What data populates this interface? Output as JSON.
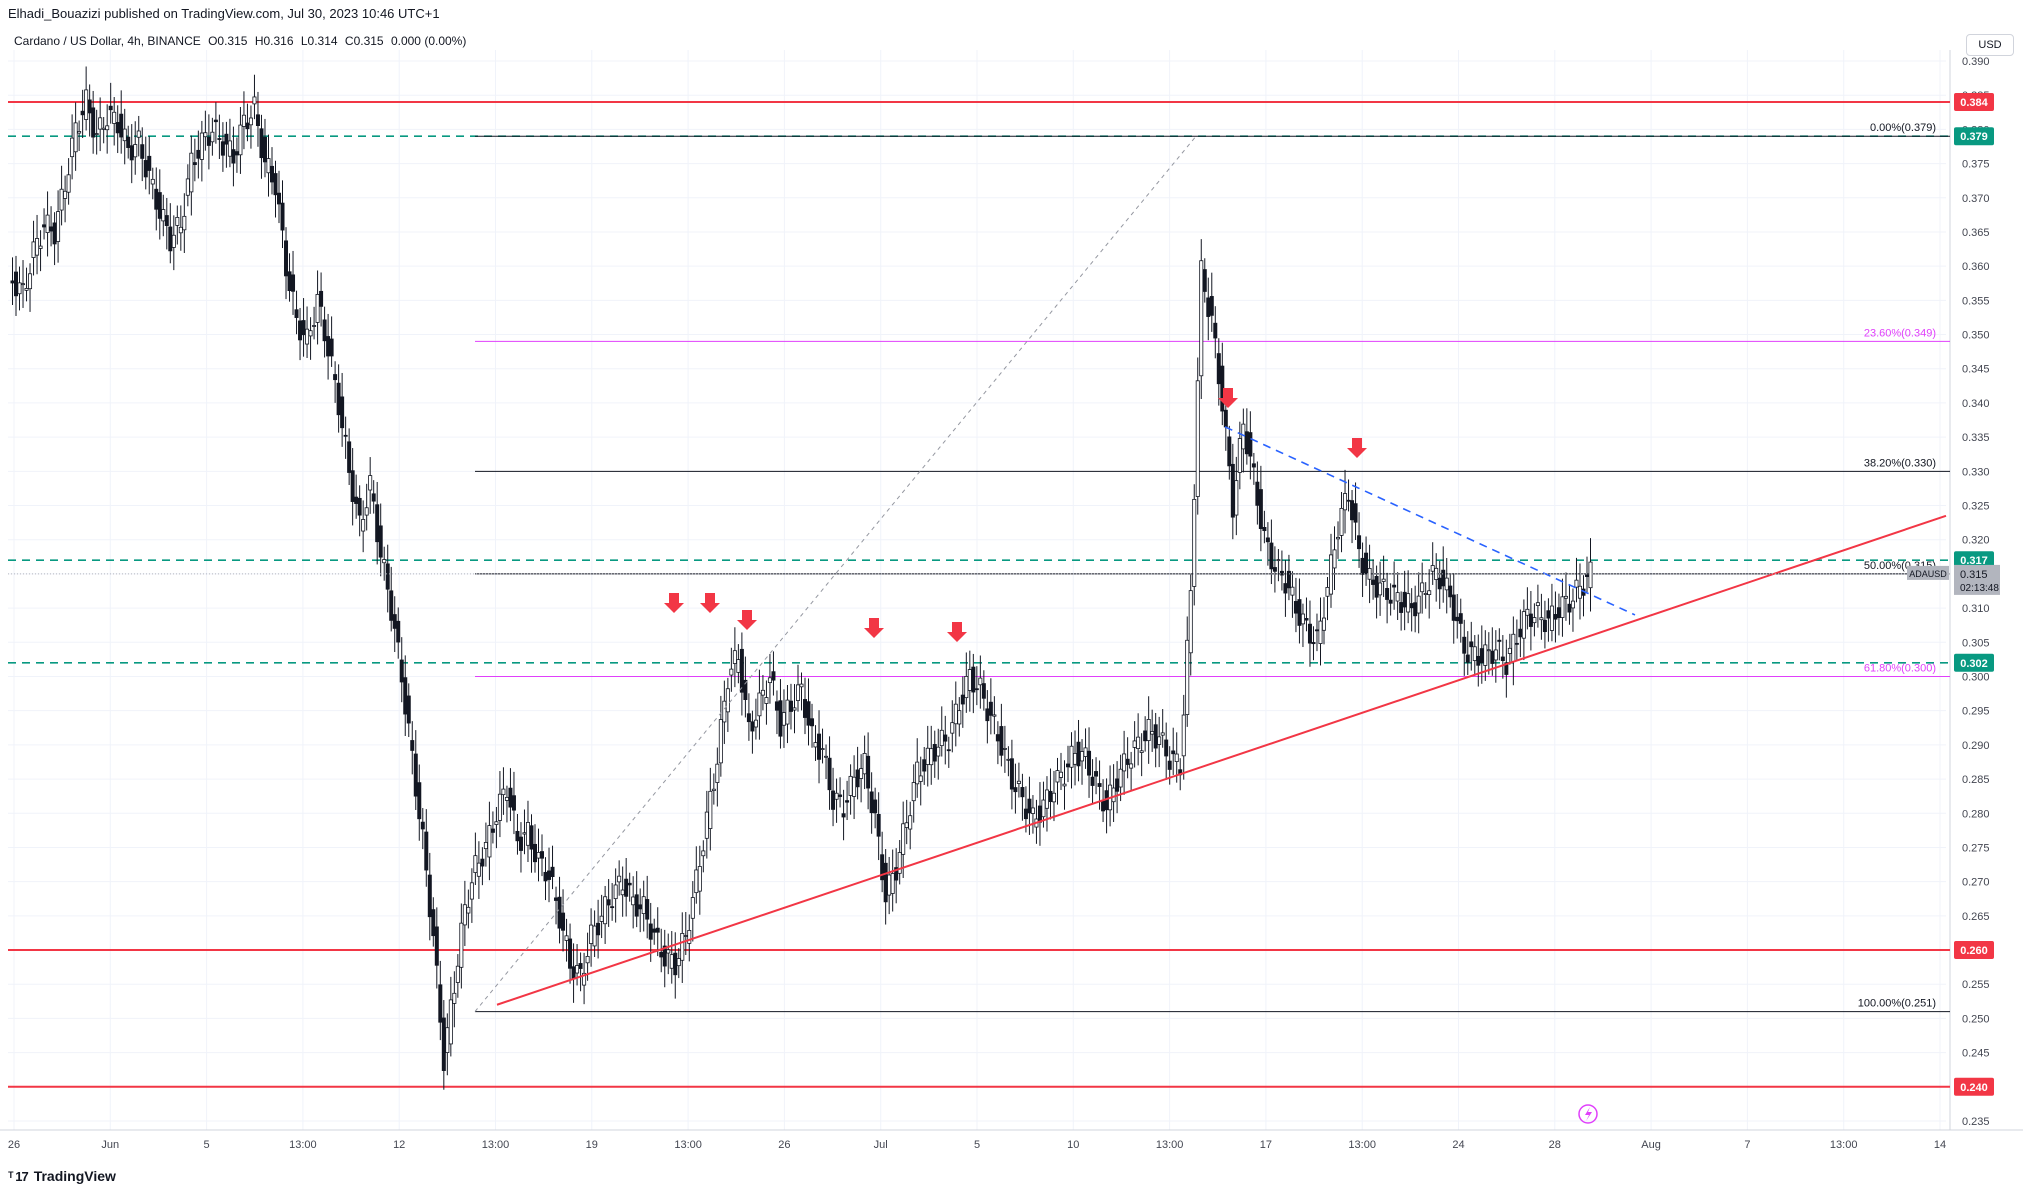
{
  "header": {
    "publisher": "Elhadi_Bouazizi published on TradingView.com, Jul 30, 2023 10:46 UTC+1",
    "symbol": "Cardano / US Dollar, 4h, BINANCE",
    "ohlc": {
      "open": "O0.315",
      "high": "H0.316",
      "low": "L0.314",
      "close": "C0.315",
      "change": "0.000 (0.00%)"
    },
    "currency_button": "USD"
  },
  "footer": {
    "brand": "TradingView",
    "brand_icon": "tradingview-logo-icon"
  },
  "colors": {
    "red": "#f23645",
    "teal": "#089981",
    "magenta": "#e040fb",
    "blue_dashed": "#2962ff",
    "candle": "#131722",
    "grid": "#f0f3fa"
  },
  "chart_data": {
    "type": "candlestick",
    "title": "",
    "ylim": [
      0.235,
      0.39
    ],
    "y_ticks": [
      "0.390",
      "0.385",
      "0.380",
      "0.375",
      "0.370",
      "0.365",
      "0.360",
      "0.355",
      "0.350",
      "0.345",
      "0.340",
      "0.335",
      "0.330",
      "0.325",
      "0.320",
      "0.315",
      "0.310",
      "0.305",
      "0.300",
      "0.295",
      "0.290",
      "0.285",
      "0.280",
      "0.275",
      "0.270",
      "0.265",
      "0.260",
      "0.255",
      "0.250",
      "0.245",
      "0.240",
      "0.235"
    ],
    "x_ticks": [
      "26",
      "Jun",
      "5",
      "13:00",
      "12",
      "13:00",
      "19",
      "13:00",
      "26",
      "Jul",
      "5",
      "10",
      "13:00",
      "17",
      "13:00",
      "24",
      "28",
      "Aug",
      "7",
      "13:00",
      "14"
    ],
    "horizontal_levels": [
      {
        "label": "0.384",
        "value": 0.384,
        "style": "solid",
        "color": "red"
      },
      {
        "label": "0.379",
        "value": 0.379,
        "style": "dashed",
        "color": "teal"
      },
      {
        "label": "0.317",
        "value": 0.317,
        "style": "dashed",
        "color": "teal"
      },
      {
        "label": "0.302",
        "value": 0.302,
        "style": "dashed",
        "color": "teal"
      },
      {
        "label": "0.260",
        "value": 0.26,
        "style": "solid",
        "color": "red"
      },
      {
        "label": "0.240",
        "value": 0.24,
        "style": "solid",
        "color": "red"
      }
    ],
    "fibonacci": [
      {
        "label": "0.00%(0.379)",
        "value": 0.379,
        "color": "black"
      },
      {
        "label": "23.60%(0.349)",
        "value": 0.349,
        "color": "magenta"
      },
      {
        "label": "38.20%(0.330)",
        "value": 0.33,
        "color": "black"
      },
      {
        "label": "50.00%(0.315)",
        "value": 0.315,
        "color": "black"
      },
      {
        "label": "61.80%(0.300)",
        "value": 0.3,
        "color": "magenta"
      },
      {
        "label": "100.00%(0.251)",
        "value": 0.251,
        "color": "black"
      }
    ],
    "current_price": {
      "symbol": "ADAUSD",
      "price": "0.315",
      "countdown": "02:13:48",
      "value": 0.315
    },
    "close_series": [
      0.358,
      0.356,
      0.362,
      0.366,
      0.365,
      0.372,
      0.38,
      0.384,
      0.379,
      0.382,
      0.381,
      0.377,
      0.378,
      0.373,
      0.368,
      0.364,
      0.366,
      0.375,
      0.378,
      0.38,
      0.378,
      0.376,
      0.381,
      0.383,
      0.375,
      0.372,
      0.36,
      0.352,
      0.349,
      0.355,
      0.348,
      0.34,
      0.33,
      0.322,
      0.328,
      0.318,
      0.31,
      0.3,
      0.288,
      0.276,
      0.262,
      0.244,
      0.255,
      0.266,
      0.272,
      0.275,
      0.28,
      0.284,
      0.276,
      0.277,
      0.273,
      0.271,
      0.265,
      0.258,
      0.256,
      0.262,
      0.265,
      0.268,
      0.27,
      0.267,
      0.266,
      0.262,
      0.259,
      0.258,
      0.262,
      0.27,
      0.279,
      0.288,
      0.3,
      0.303,
      0.292,
      0.296,
      0.3,
      0.293,
      0.296,
      0.298,
      0.291,
      0.289,
      0.282,
      0.281,
      0.285,
      0.287,
      0.279,
      0.268,
      0.272,
      0.279,
      0.286,
      0.288,
      0.29,
      0.291,
      0.296,
      0.3,
      0.298,
      0.294,
      0.29,
      0.285,
      0.282,
      0.279,
      0.281,
      0.284,
      0.286,
      0.289,
      0.288,
      0.284,
      0.281,
      0.285,
      0.288,
      0.29,
      0.292,
      0.291,
      0.288,
      0.287,
      0.312,
      0.359,
      0.352,
      0.34,
      0.325,
      0.337,
      0.329,
      0.32,
      0.316,
      0.314,
      0.31,
      0.307,
      0.305,
      0.313,
      0.322,
      0.327,
      0.318,
      0.314,
      0.313,
      0.312,
      0.311,
      0.31,
      0.312,
      0.315,
      0.314,
      0.31,
      0.304,
      0.303,
      0.303,
      0.304,
      0.302,
      0.306,
      0.309,
      0.309,
      0.308,
      0.31,
      0.311,
      0.313,
      0.315
    ],
    "annotations": {
      "sell_arrows": 7,
      "trendlines": [
        "ascending red support line",
        "descending blue dashed resistance line",
        "grey dotted fib anchor line"
      ]
    }
  }
}
